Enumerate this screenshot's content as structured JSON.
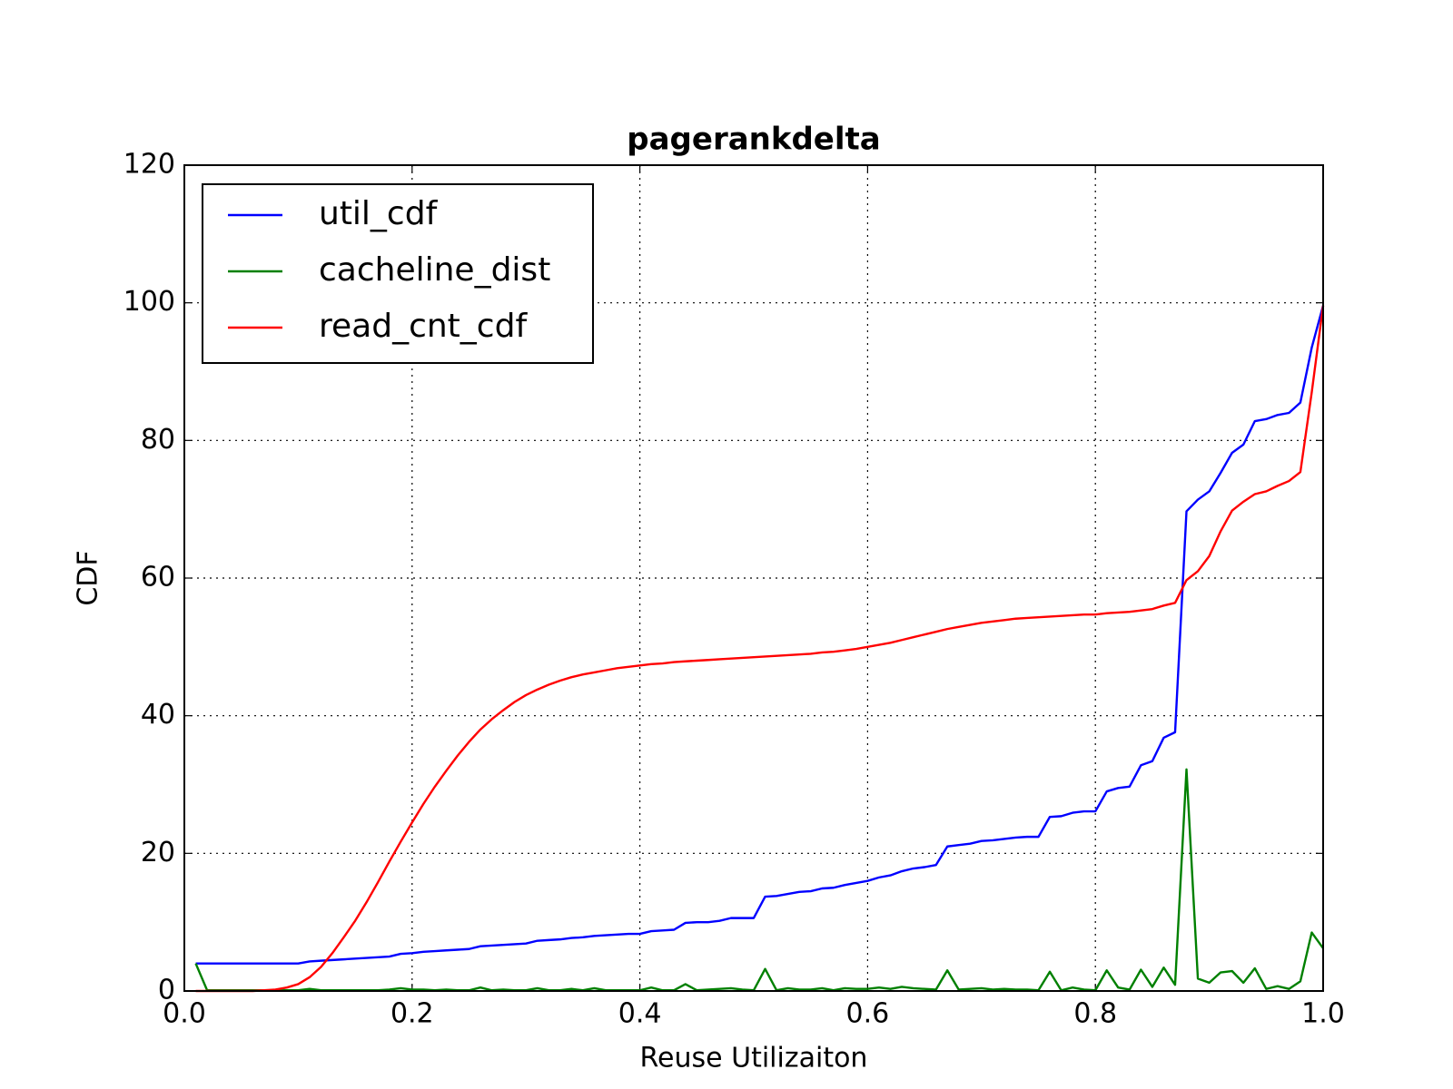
{
  "chart_data": {
    "type": "line",
    "title": "pagerankdelta",
    "x_label": "Reuse Utilizaiton",
    "y_label": "CDF",
    "x": [
      0.01,
      0.02,
      0.03,
      0.04,
      0.05,
      0.06,
      0.07,
      0.08,
      0.09,
      0.1,
      0.11,
      0.12,
      0.13,
      0.14,
      0.15,
      0.16,
      0.17,
      0.18,
      0.19,
      0.2,
      0.21,
      0.22,
      0.23,
      0.24,
      0.25,
      0.26,
      0.27,
      0.28,
      0.29,
      0.3,
      0.31,
      0.32,
      0.33,
      0.34,
      0.35,
      0.36,
      0.37,
      0.38,
      0.39,
      0.4,
      0.41,
      0.42,
      0.43,
      0.44,
      0.45,
      0.46,
      0.47,
      0.48,
      0.49,
      0.5,
      0.51,
      0.52,
      0.53,
      0.54,
      0.55,
      0.56,
      0.57,
      0.58,
      0.59,
      0.6,
      0.61,
      0.62,
      0.63,
      0.64,
      0.65,
      0.66,
      0.67,
      0.68,
      0.69,
      0.7,
      0.71,
      0.72,
      0.73,
      0.74,
      0.75,
      0.76,
      0.77,
      0.78,
      0.79,
      0.8,
      0.81,
      0.82,
      0.83,
      0.84,
      0.85,
      0.86,
      0.87,
      0.88,
      0.89,
      0.9,
      0.91,
      0.92,
      0.93,
      0.94,
      0.95,
      0.96,
      0.97,
      0.98,
      0.99,
      1.0
    ],
    "series": [
      {
        "name": "util_cdf",
        "color": "#0000ff",
        "values": [
          4.0,
          4.0,
          4.0,
          4.0,
          4.0,
          4.0,
          4.0,
          4.0,
          4.0,
          4.0,
          4.3,
          4.4,
          4.5,
          4.6,
          4.7,
          4.8,
          4.9,
          5.0,
          5.4,
          5.5,
          5.7,
          5.8,
          5.9,
          6.0,
          6.1,
          6.5,
          6.6,
          6.7,
          6.8,
          6.9,
          7.3,
          7.4,
          7.5,
          7.7,
          7.8,
          8.0,
          8.1,
          8.2,
          8.3,
          8.3,
          8.7,
          8.8,
          8.9,
          9.9,
          10.0,
          10.0,
          10.2,
          10.6,
          10.6,
          10.6,
          13.7,
          13.8,
          14.1,
          14.4,
          14.5,
          14.9,
          15.0,
          15.4,
          15.7,
          16.0,
          16.5,
          16.8,
          17.4,
          17.8,
          18.0,
          18.3,
          21.0,
          21.2,
          21.4,
          21.8,
          21.9,
          22.1,
          22.3,
          22.4,
          22.4,
          25.3,
          25.4,
          25.9,
          26.1,
          26.1,
          29.0,
          29.5,
          29.7,
          32.8,
          33.4,
          36.8,
          37.6,
          69.7,
          71.4,
          72.6,
          75.3,
          78.2,
          79.4,
          82.8,
          83.1,
          83.7,
          84.0,
          85.5,
          93.5,
          99.6
        ]
      },
      {
        "name": "cacheline_dist",
        "color": "#008000",
        "values": [
          4.0,
          0.1,
          0.1,
          0.1,
          0.1,
          0.1,
          0.1,
          0.1,
          0.1,
          0.1,
          0.3,
          0.1,
          0.1,
          0.1,
          0.1,
          0.1,
          0.1,
          0.2,
          0.4,
          0.2,
          0.2,
          0.1,
          0.2,
          0.1,
          0.1,
          0.5,
          0.1,
          0.2,
          0.1,
          0.1,
          0.4,
          0.1,
          0.1,
          0.3,
          0.1,
          0.4,
          0.1,
          0.1,
          0.1,
          0.1,
          0.5,
          0.1,
          0.1,
          1.0,
          0.1,
          0.2,
          0.3,
          0.4,
          0.2,
          0.1,
          3.2,
          0.1,
          0.4,
          0.2,
          0.2,
          0.4,
          0.1,
          0.4,
          0.3,
          0.3,
          0.5,
          0.3,
          0.6,
          0.4,
          0.3,
          0.2,
          3.0,
          0.2,
          0.3,
          0.4,
          0.2,
          0.3,
          0.2,
          0.2,
          0.1,
          2.8,
          0.1,
          0.5,
          0.2,
          0.1,
          3.0,
          0.5,
          0.2,
          3.1,
          0.6,
          3.4,
          0.9,
          32.2,
          1.8,
          1.2,
          2.7,
          2.9,
          1.2,
          3.3,
          0.3,
          0.7,
          0.3,
          1.4,
          8.5,
          6.2
        ]
      },
      {
        "name": "read_cnt_cdf",
        "color": "#ff0000",
        "values": [
          0,
          0,
          0,
          0,
          0,
          0,
          0.1,
          0.2,
          0.5,
          1.0,
          2.0,
          3.5,
          5.5,
          7.8,
          10.2,
          12.9,
          15.8,
          18.8,
          21.7,
          24.5,
          27.2,
          29.7,
          32.0,
          34.2,
          36.2,
          38.0,
          39.5,
          40.8,
          42.0,
          43.0,
          43.8,
          44.5,
          45.1,
          45.6,
          46.0,
          46.3,
          46.6,
          46.9,
          47.1,
          47.3,
          47.5,
          47.6,
          47.8,
          47.9,
          48.0,
          48.1,
          48.2,
          48.3,
          48.4,
          48.5,
          48.6,
          48.7,
          48.8,
          48.9,
          49.0,
          49.2,
          49.3,
          49.5,
          49.7,
          50.0,
          50.3,
          50.6,
          51.0,
          51.4,
          51.8,
          52.2,
          52.6,
          52.9,
          53.2,
          53.5,
          53.7,
          53.9,
          54.1,
          54.2,
          54.3,
          54.4,
          54.5,
          54.6,
          54.7,
          54.7,
          54.9,
          55.0,
          55.1,
          55.3,
          55.5,
          56.0,
          56.4,
          59.7,
          61.0,
          63.2,
          66.8,
          69.8,
          71.1,
          72.2,
          72.6,
          73.4,
          74.1,
          75.4,
          87.0,
          99.6
        ]
      }
    ],
    "xlim": [
      0,
      1
    ],
    "xticks": [
      {
        "value": 0,
        "label": "0.0"
      },
      0.2,
      0.4,
      0.6,
      0.8,
      {
        "value": 1,
        "label": "1.0"
      }
    ],
    "ylim": [
      0,
      120
    ],
    "yticks": [
      0,
      20,
      40,
      60,
      80,
      100,
      120
    ],
    "grid": true,
    "legend": "upper left"
  }
}
